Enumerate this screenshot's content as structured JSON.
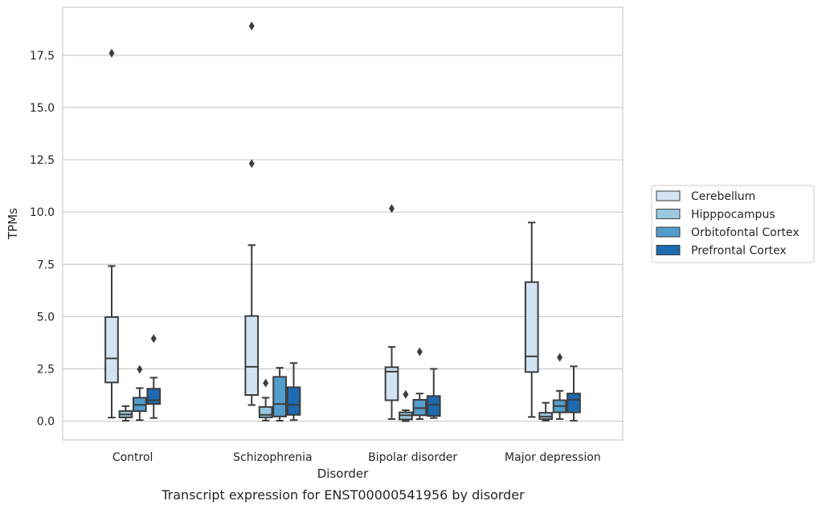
{
  "chart_data": {
    "type": "box",
    "caption": "Transcript expression for ENST00000541956 by disorder",
    "xlabel": "Disorder",
    "ylabel": "TPMs",
    "ylim": [
      -0.9,
      19.8
    ],
    "yticks": [
      0.0,
      2.5,
      5.0,
      7.5,
      10.0,
      12.5,
      15.0,
      17.5
    ],
    "grid": "horizontal",
    "legend_position": "right",
    "categories": [
      "Control",
      "Schizophrenia",
      "Bipolar disorder",
      "Major depression"
    ],
    "series": [
      {
        "name": "Cerebellum",
        "color": "#d2e3f3",
        "boxes": [
          {
            "whisker_low": 0.17,
            "q1": 1.85,
            "median": 3.0,
            "q3": 4.98,
            "whisker_high": 7.42,
            "outliers": [
              17.6
            ]
          },
          {
            "whisker_low": 0.77,
            "q1": 1.25,
            "median": 2.6,
            "q3": 5.03,
            "whisker_high": 8.42,
            "outliers": [
              12.32,
              18.9
            ]
          },
          {
            "whisker_low": 0.1,
            "q1": 1.0,
            "median": 2.37,
            "q3": 2.58,
            "whisker_high": 3.55,
            "outliers": [
              10.17
            ]
          },
          {
            "whisker_low": 0.2,
            "q1": 2.35,
            "median": 3.1,
            "q3": 6.65,
            "whisker_high": 9.5,
            "outliers": []
          }
        ]
      },
      {
        "name": "Hipppocampus",
        "color": "#9ac8e0",
        "boxes": [
          {
            "whisker_low": 0.02,
            "q1": 0.18,
            "median": 0.32,
            "q3": 0.48,
            "whisker_high": 0.72,
            "outliers": []
          },
          {
            "whisker_low": 0.03,
            "q1": 0.18,
            "median": 0.3,
            "q3": 0.68,
            "whisker_high": 1.12,
            "outliers": [
              1.82
            ]
          },
          {
            "whisker_low": 0.0,
            "q1": 0.08,
            "median": 0.28,
            "q3": 0.42,
            "whisker_high": 0.52,
            "outliers": [
              1.28
            ]
          },
          {
            "whisker_low": 0.02,
            "q1": 0.1,
            "median": 0.22,
            "q3": 0.4,
            "whisker_high": 0.88,
            "outliers": []
          }
        ]
      },
      {
        "name": "Orbitofontal Cortex",
        "color": "#529dcc",
        "boxes": [
          {
            "whisker_low": 0.05,
            "q1": 0.48,
            "median": 0.78,
            "q3": 1.12,
            "whisker_high": 1.58,
            "outliers": [
              2.48
            ]
          },
          {
            "whisker_low": 0.02,
            "q1": 0.22,
            "median": 0.82,
            "q3": 2.12,
            "whisker_high": 2.55,
            "outliers": []
          },
          {
            "whisker_low": 0.1,
            "q1": 0.28,
            "median": 0.62,
            "q3": 1.02,
            "whisker_high": 1.32,
            "outliers": [
              3.32
            ]
          },
          {
            "whisker_low": 0.1,
            "q1": 0.42,
            "median": 0.72,
            "q3": 1.0,
            "whisker_high": 1.45,
            "outliers": [
              3.05
            ]
          }
        ]
      },
      {
        "name": "Prefrontal Cortex",
        "color": "#1c6aaf",
        "boxes": [
          {
            "whisker_low": 0.15,
            "q1": 0.82,
            "median": 1.0,
            "q3": 1.55,
            "whisker_high": 2.08,
            "outliers": [
              3.95
            ]
          },
          {
            "whisker_low": 0.05,
            "q1": 0.3,
            "median": 0.78,
            "q3": 1.62,
            "whisker_high": 2.78,
            "outliers": []
          },
          {
            "whisker_low": 0.15,
            "q1": 0.25,
            "median": 0.78,
            "q3": 1.2,
            "whisker_high": 2.5,
            "outliers": []
          },
          {
            "whisker_low": 0.02,
            "q1": 0.42,
            "median": 1.02,
            "q3": 1.32,
            "whisker_high": 2.62,
            "outliers": []
          }
        ]
      }
    ]
  }
}
